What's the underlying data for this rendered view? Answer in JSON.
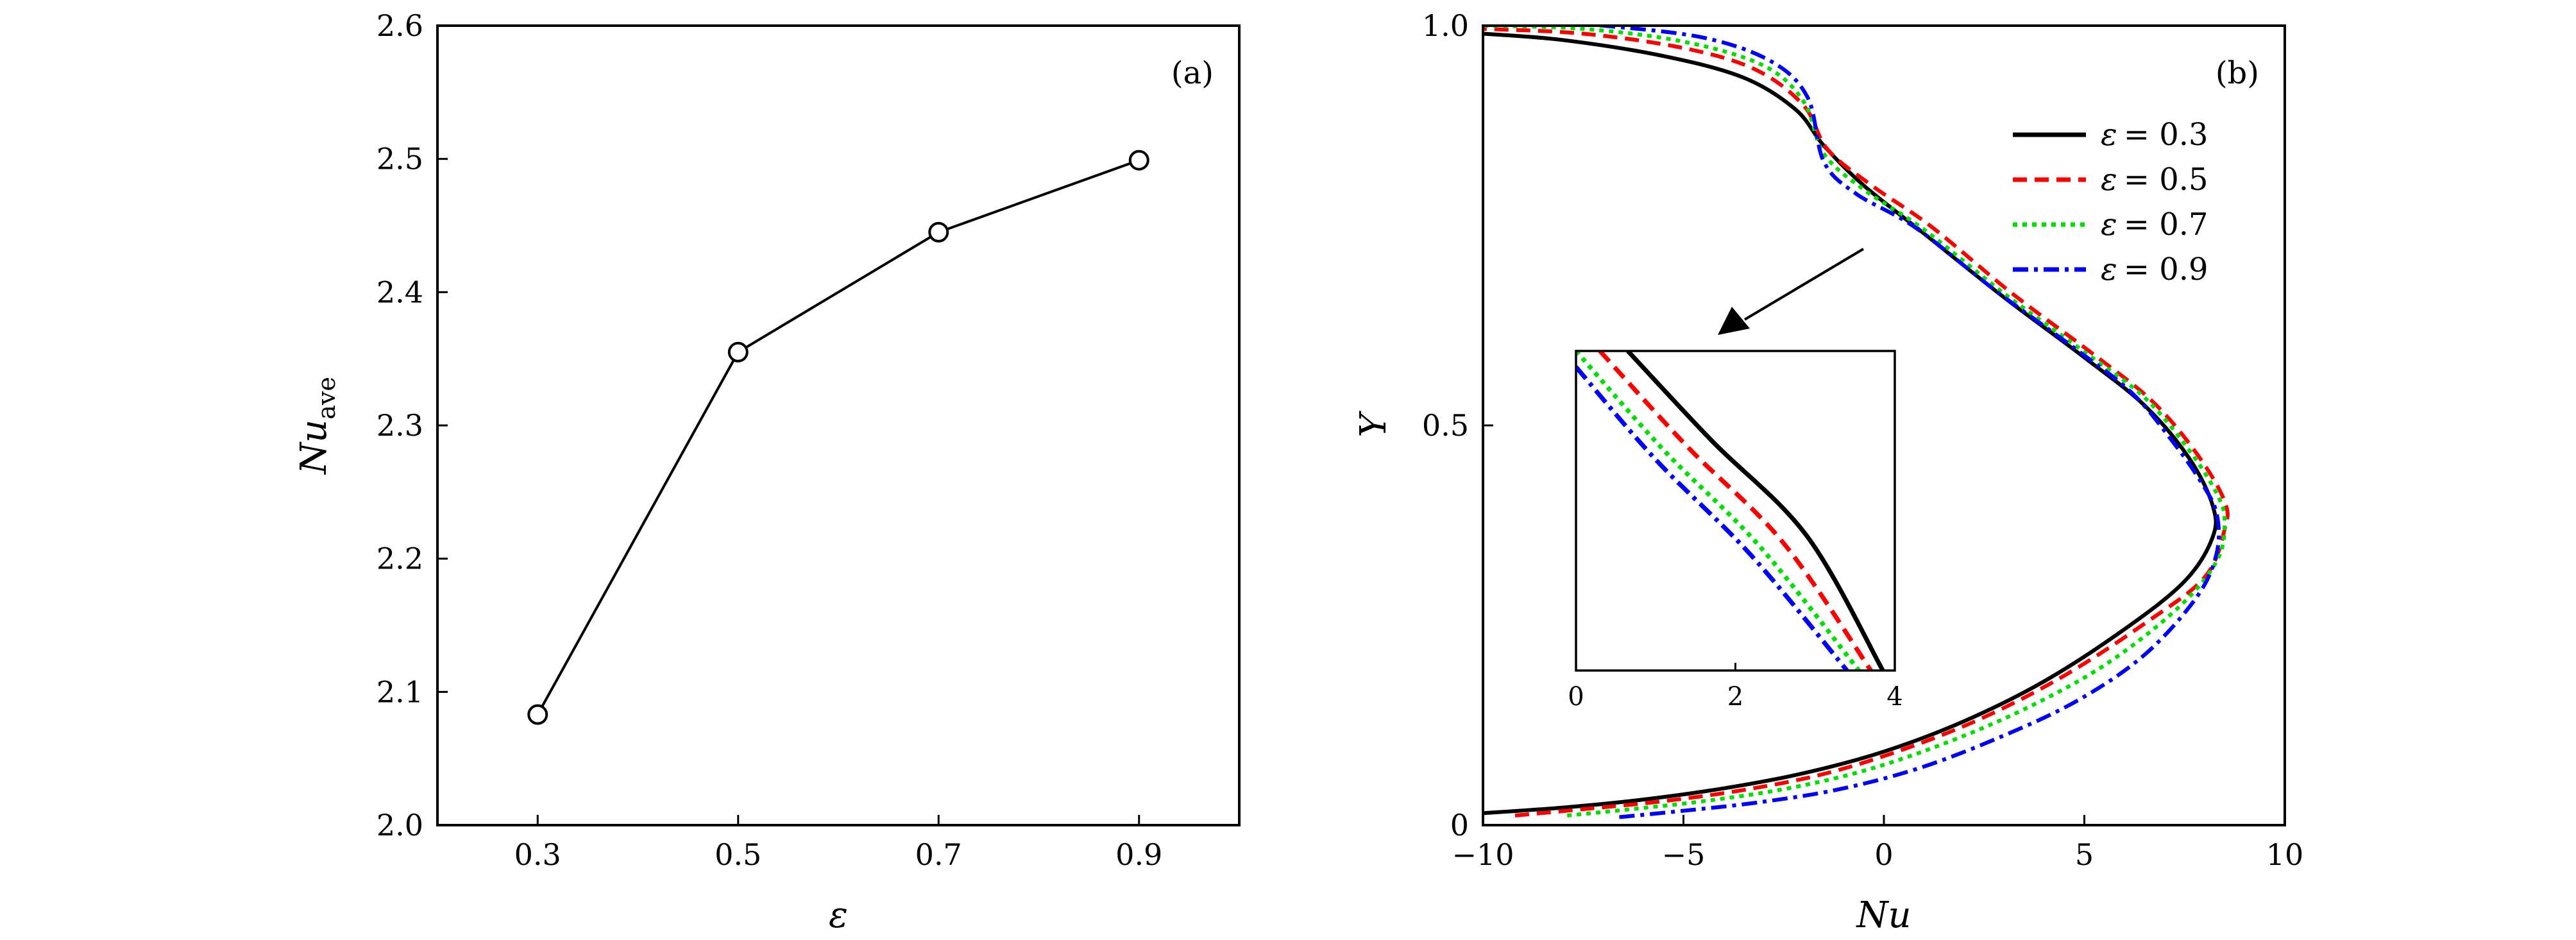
{
  "chart_data": [
    {
      "type": "line",
      "panel_label": "(a)",
      "xlabel": "ε",
      "ylabel_main": "Nu",
      "ylabel_sub": "ave",
      "x": [
        0.3,
        0.5,
        0.7,
        0.9
      ],
      "values": [
        2.083,
        2.355,
        2.445,
        2.499
      ],
      "marker": "open-circle",
      "line_color": "#000000",
      "xlim": [
        0.2,
        1.0
      ],
      "ylim": [
        2.0,
        2.6
      ],
      "xticks": [
        0.3,
        0.5,
        0.7,
        0.9
      ],
      "xtick_labels": [
        "0.3",
        "0.5",
        "0.7",
        "0.9"
      ],
      "yticks": [
        2.0,
        2.1,
        2.2,
        2.3,
        2.4,
        2.5,
        2.6
      ],
      "ytick_labels": [
        "2.0",
        "2.1",
        "2.2",
        "2.3",
        "2.4",
        "2.5",
        "2.6"
      ],
      "grid": false
    },
    {
      "type": "line",
      "panel_label": "(b)",
      "xlabel": "Nu",
      "ylabel": "Y",
      "xlim": [
        -10,
        10
      ],
      "ylim": [
        0,
        1
      ],
      "xticks": [
        -10,
        -5,
        0,
        5,
        10
      ],
      "xtick_labels": [
        "−10",
        "−5",
        "0",
        "5",
        "10"
      ],
      "yticks": [
        0,
        0.5,
        1.0
      ],
      "ytick_labels": [
        "0",
        "0.5",
        "1.0"
      ],
      "legend_placement": "top-right",
      "grid": false,
      "series": [
        {
          "name": "ε = 0.3",
          "legend_symbol": "ε",
          "legend_value": "= 0.3",
          "color": "#000000",
          "dash": "solid",
          "points": [
            [
              -10,
              0.015
            ],
            [
              -8,
              0.022
            ],
            [
              -6,
              0.032
            ],
            [
              -4,
              0.046
            ],
            [
              -2,
              0.065
            ],
            [
              0,
              0.092
            ],
            [
              2,
              0.13
            ],
            [
              4,
              0.18
            ],
            [
              6,
              0.245
            ],
            [
              7.5,
              0.305
            ],
            [
              8.2,
              0.36
            ],
            [
              8.2,
              0.4
            ],
            [
              7.6,
              0.46
            ],
            [
              6.5,
              0.525
            ],
            [
              5,
              0.585
            ],
            [
              3,
              0.66
            ],
            [
              1,
              0.74
            ],
            [
              -0.5,
              0.8
            ],
            [
              -1.5,
              0.85
            ],
            [
              -2.2,
              0.895
            ],
            [
              -3.5,
              0.935
            ],
            [
              -5.5,
              0.962
            ],
            [
              -8,
              0.982
            ],
            [
              -10,
              0.99
            ]
          ]
        },
        {
          "name": "ε = 0.5",
          "legend_symbol": "ε",
          "legend_value": "= 0.5",
          "color": "#ff0000",
          "dash": "dashed",
          "points": [
            [
              -9.2,
              0.012
            ],
            [
              -7.5,
              0.02
            ],
            [
              -5.5,
              0.03
            ],
            [
              -3.5,
              0.044
            ],
            [
              -1.5,
              0.064
            ],
            [
              0.5,
              0.095
            ],
            [
              2.5,
              0.135
            ],
            [
              4.5,
              0.187
            ],
            [
              6.5,
              0.252
            ],
            [
              8,
              0.31
            ],
            [
              8.5,
              0.37
            ],
            [
              8.5,
              0.405
            ],
            [
              7.8,
              0.465
            ],
            [
              6.7,
              0.53
            ],
            [
              5.2,
              0.59
            ],
            [
              3.2,
              0.665
            ],
            [
              1.2,
              0.748
            ],
            [
              -0.3,
              0.8
            ],
            [
              -1.4,
              0.845
            ],
            [
              -2.0,
              0.9
            ],
            [
              -3.2,
              0.945
            ],
            [
              -5,
              0.972
            ],
            [
              -7.5,
              0.99
            ],
            [
              -10,
              0.996
            ]
          ]
        },
        {
          "name": "ε = 0.7",
          "legend_symbol": "ε",
          "legend_value": "= 0.7",
          "color": "#00e000",
          "dash": "dotted",
          "points": [
            [
              -7.9,
              0.012
            ],
            [
              -6.3,
              0.02
            ],
            [
              -4.5,
              0.03
            ],
            [
              -2.5,
              0.045
            ],
            [
              -0.5,
              0.068
            ],
            [
              1.5,
              0.102
            ],
            [
              3.5,
              0.145
            ],
            [
              5.5,
              0.2
            ],
            [
              7.3,
              0.27
            ],
            [
              8.3,
              0.33
            ],
            [
              8.5,
              0.38
            ],
            [
              8.3,
              0.415
            ],
            [
              7.6,
              0.47
            ],
            [
              6.5,
              0.535
            ],
            [
              5,
              0.592
            ],
            [
              3,
              0.665
            ],
            [
              1,
              0.745
            ],
            [
              -0.5,
              0.795
            ],
            [
              -1.5,
              0.84
            ],
            [
              -2.0,
              0.905
            ],
            [
              -3,
              0.95
            ],
            [
              -5,
              0.98
            ],
            [
              -7.5,
              0.996
            ],
            [
              -10,
              1.0
            ]
          ]
        },
        {
          "name": "ε = 0.9",
          "legend_symbol": "ε",
          "legend_value": "= 0.9",
          "color": "#0000ff",
          "dash": "dashdot",
          "points": [
            [
              -6.6,
              0.01
            ],
            [
              -5,
              0.018
            ],
            [
              -3.2,
              0.028
            ],
            [
              -1.2,
              0.044
            ],
            [
              0.8,
              0.07
            ],
            [
              2.8,
              0.108
            ],
            [
              4.8,
              0.155
            ],
            [
              6.5,
              0.213
            ],
            [
              7.8,
              0.285
            ],
            [
              8.3,
              0.34
            ],
            [
              8.3,
              0.39
            ],
            [
              7.9,
              0.43
            ],
            [
              7.2,
              0.48
            ],
            [
              6.2,
              0.54
            ],
            [
              4.8,
              0.595
            ],
            [
              2.8,
              0.668
            ],
            [
              0.8,
              0.747
            ],
            [
              -0.7,
              0.79
            ],
            [
              -1.5,
              0.83
            ],
            [
              -1.9,
              0.91
            ],
            [
              -2.8,
              0.955
            ],
            [
              -4.5,
              0.985
            ],
            [
              -7,
              1.0
            ],
            [
              -8.5,
              1.004
            ]
          ]
        }
      ],
      "inset": {
        "xlim": [
          0,
          4
        ],
        "xticks": [
          0,
          2,
          4
        ],
        "xtick_labels": [
          "0",
          "2",
          "4"
        ],
        "series": [
          {
            "color": "#000000",
            "dash": "solid",
            "points": [
              [
                0.65,
                1.0
              ],
              [
                1.7,
                0.72
              ],
              [
                2.9,
                0.42
              ],
              [
                3.85,
                0.0
              ]
            ]
          },
          {
            "color": "#ff0000",
            "dash": "dashed",
            "points": [
              [
                0.3,
                1.0
              ],
              [
                1.4,
                0.7
              ],
              [
                2.6,
                0.4
              ],
              [
                3.7,
                0.0
              ]
            ]
          },
          {
            "color": "#00e000",
            "dash": "dotted",
            "points": [
              [
                0,
                1.0
              ],
              [
                1.1,
                0.69
              ],
              [
                2.3,
                0.39
              ],
              [
                3.55,
                0.0
              ]
            ]
          },
          {
            "color": "#0000ff",
            "dash": "dashdot",
            "points": [
              [
                0,
                0.95
              ],
              [
                1.0,
                0.66
              ],
              [
                2.2,
                0.36
              ],
              [
                3.4,
                0.0
              ]
            ]
          }
        ]
      }
    }
  ]
}
